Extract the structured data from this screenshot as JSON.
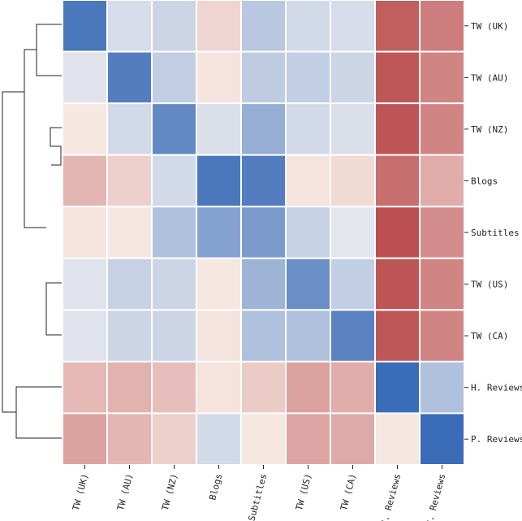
{
  "chart_data": {
    "type": "heatmap",
    "title": "",
    "rows": [
      "TW (UK)",
      "TW (AU)",
      "TW (NZ)",
      "Blogs",
      "Subtitles",
      "TW (US)",
      "TW (CA)",
      "H. Reviews",
      "P. Reviews"
    ],
    "columns": [
      "TW (UK)",
      "TW (AU)",
      "TW (NZ)",
      "Blogs",
      "Subtitles",
      "TW (US)",
      "TW (CA)",
      "H. Reviews",
      "P. Reviews"
    ],
    "values": [
      [
        -0.9,
        -0.1,
        -0.15,
        0.12,
        -0.25,
        -0.12,
        -0.1,
        0.85,
        0.65
      ],
      [
        -0.05,
        -0.85,
        -0.2,
        0.05,
        -0.22,
        -0.2,
        -0.15,
        0.9,
        0.6
      ],
      [
        0.03,
        -0.12,
        -0.75,
        -0.08,
        -0.45,
        -0.12,
        -0.08,
        0.92,
        0.6
      ],
      [
        0.3,
        0.15,
        -0.12,
        -0.9,
        -0.85,
        0.05,
        0.1,
        0.75,
        0.35
      ],
      [
        0.05,
        0.03,
        -0.3,
        -0.55,
        -0.6,
        -0.18,
        -0.03,
        0.95,
        0.55
      ],
      [
        -0.05,
        -0.18,
        -0.15,
        0.03,
        -0.4,
        -0.7,
        -0.2,
        0.92,
        0.6
      ],
      [
        -0.05,
        -0.15,
        -0.15,
        0.05,
        -0.3,
        -0.3,
        -0.8,
        0.9,
        0.6
      ],
      [
        0.28,
        0.32,
        0.25,
        0.05,
        0.18,
        0.42,
        0.35,
        -1.0,
        -0.3
      ],
      [
        0.42,
        0.3,
        0.15,
        -0.12,
        0.03,
        0.4,
        0.38,
        0.03,
        -1.0
      ]
    ],
    "vmin": -1,
    "vmax": 1,
    "colormap": {
      "negative": "#3b6cb7",
      "neutral": "#eeeeee",
      "positive": "#b8484a"
    },
    "legend": "none",
    "dendrogram": "left"
  }
}
